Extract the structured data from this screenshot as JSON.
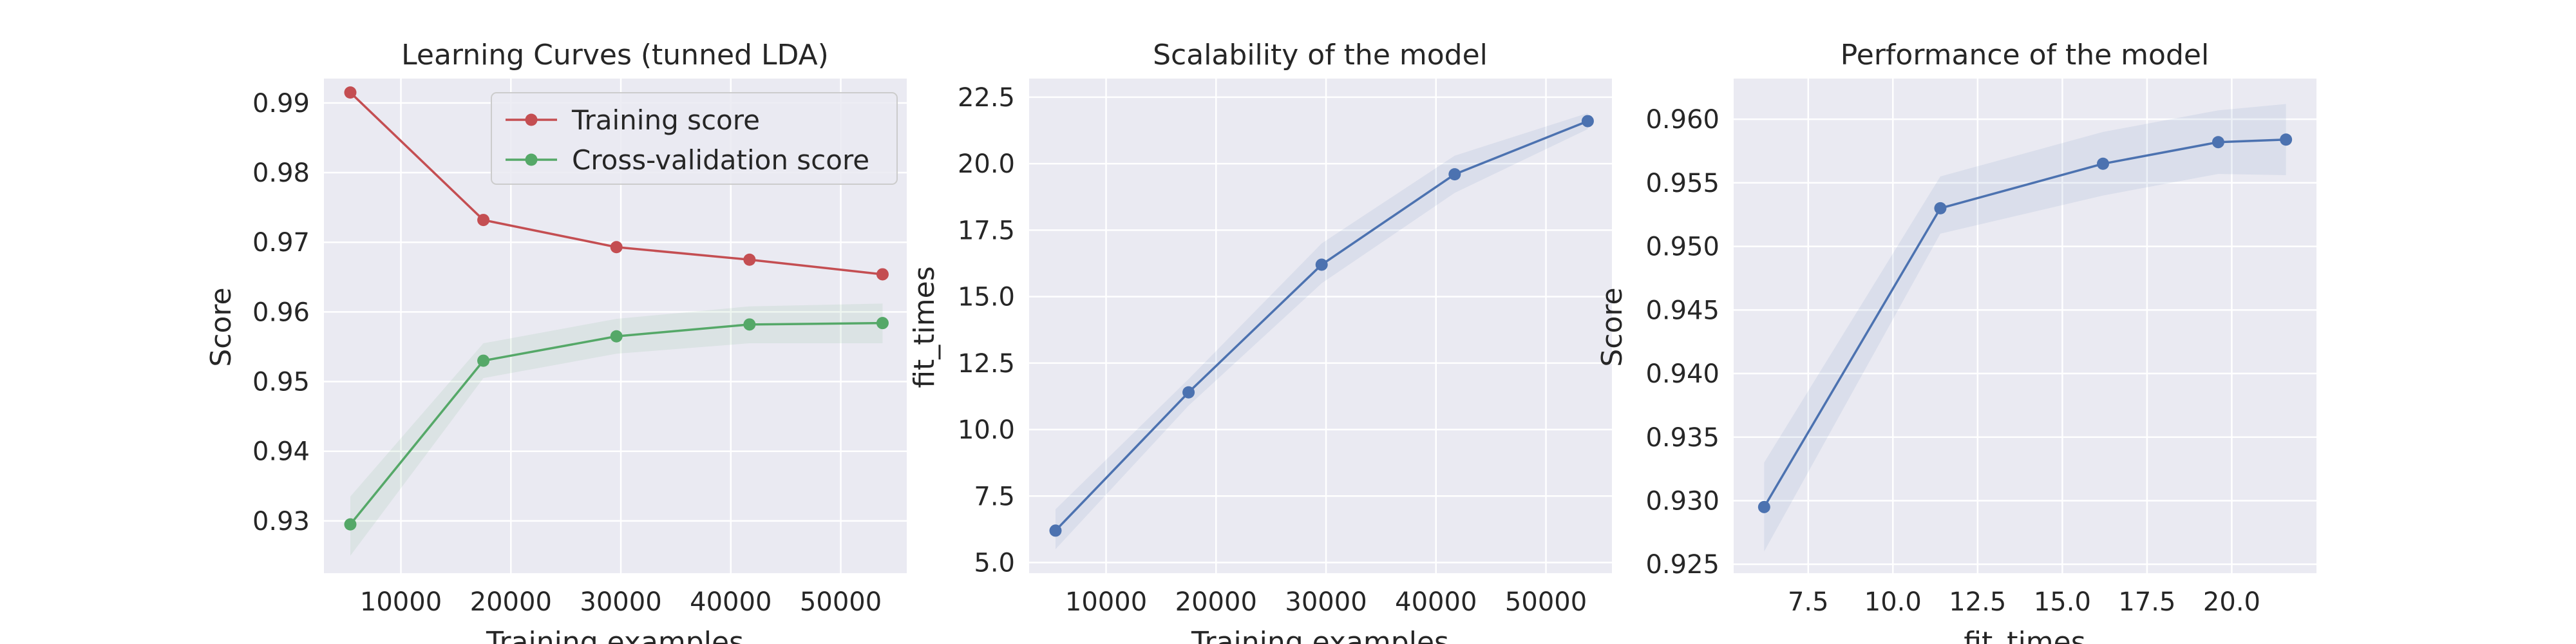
{
  "figure": {
    "background": "#ffffff",
    "axes_face": "#EAEAF2",
    "grid_color": "#FFFFFF"
  },
  "chart_data": [
    {
      "type": "line",
      "title": "Learning Curves (tunned LDA)",
      "xlabel": "Training examples",
      "ylabel": "Score",
      "xlim": [
        3000,
        56000
      ],
      "ylim": [
        0.9225,
        0.9935
      ],
      "xticks": [
        10000,
        20000,
        30000,
        40000,
        50000
      ],
      "xtick_labels": [
        "10000",
        "20000",
        "30000",
        "40000",
        "50000"
      ],
      "yticks": [
        0.93,
        0.94,
        0.95,
        0.96,
        0.97,
        0.98,
        0.99
      ],
      "ytick_labels": [
        "0.93",
        "0.94",
        "0.95",
        "0.96",
        "0.97",
        "0.98",
        "0.99"
      ],
      "grid": true,
      "legend_position": "top-right",
      "x": [
        5400,
        17500,
        29600,
        41700,
        53800
      ],
      "series": [
        {
          "name": "Training score",
          "color": "#C44E52",
          "values": [
            0.9915,
            0.9732,
            0.9693,
            0.9675,
            0.9654
          ],
          "band_lower": [
            0.9914,
            0.9731,
            0.9692,
            0.9674,
            0.9653
          ],
          "band_upper": [
            0.9916,
            0.9733,
            0.9694,
            0.9676,
            0.9655
          ]
        },
        {
          "name": "Cross-validation score",
          "color": "#55A868",
          "values": [
            0.9295,
            0.953,
            0.9565,
            0.9582,
            0.9584
          ],
          "band_lower": [
            0.925,
            0.9505,
            0.954,
            0.9555,
            0.9555
          ],
          "band_upper": [
            0.9335,
            0.9555,
            0.959,
            0.9608,
            0.9612
          ]
        }
      ]
    },
    {
      "type": "line",
      "title": "Scalability of the model",
      "xlabel": "Training examples",
      "ylabel": "fit_times",
      "xlim": [
        3000,
        56000
      ],
      "ylim": [
        4.6,
        23.2
      ],
      "xticks": [
        10000,
        20000,
        30000,
        40000,
        50000
      ],
      "xtick_labels": [
        "10000",
        "20000",
        "30000",
        "40000",
        "50000"
      ],
      "yticks": [
        5.0,
        7.5,
        10.0,
        12.5,
        15.0,
        17.5,
        20.0,
        22.5
      ],
      "ytick_labels": [
        "5.0",
        "7.5",
        "10.0",
        "12.5",
        "15.0",
        "17.5",
        "20.0",
        "22.5"
      ],
      "grid": true,
      "x": [
        5400,
        17500,
        29600,
        41700,
        53800
      ],
      "series": [
        {
          "color": "#4C72B0",
          "values": [
            6.2,
            11.4,
            16.2,
            19.6,
            21.6
          ],
          "band_lower": [
            5.5,
            10.9,
            15.5,
            18.9,
            21.3
          ],
          "band_upper": [
            7.0,
            11.9,
            17.0,
            20.3,
            21.9
          ]
        }
      ]
    },
    {
      "type": "line",
      "title": "Performance of the model",
      "xlabel": "fit_times",
      "ylabel": "Score",
      "xlim": [
        5.3,
        22.5
      ],
      "ylim": [
        0.9243,
        0.9632
      ],
      "xticks": [
        7.5,
        10.0,
        12.5,
        15.0,
        17.5,
        20.0
      ],
      "xtick_labels": [
        "7.5",
        "10.0",
        "12.5",
        "15.0",
        "17.5",
        "20.0"
      ],
      "yticks": [
        0.925,
        0.93,
        0.935,
        0.94,
        0.945,
        0.95,
        0.955,
        0.96
      ],
      "ytick_labels": [
        "0.925",
        "0.930",
        "0.935",
        "0.940",
        "0.945",
        "0.950",
        "0.955",
        "0.960"
      ],
      "grid": true,
      "x": [
        6.2,
        11.4,
        16.2,
        19.6,
        21.6
      ],
      "series": [
        {
          "color": "#4C72B0",
          "values": [
            0.9295,
            0.953,
            0.9565,
            0.9582,
            0.9584
          ],
          "band_lower": [
            0.926,
            0.951,
            0.954,
            0.9557,
            0.9556
          ],
          "band_upper": [
            0.933,
            0.9555,
            0.959,
            0.9607,
            0.9612
          ]
        }
      ]
    }
  ]
}
